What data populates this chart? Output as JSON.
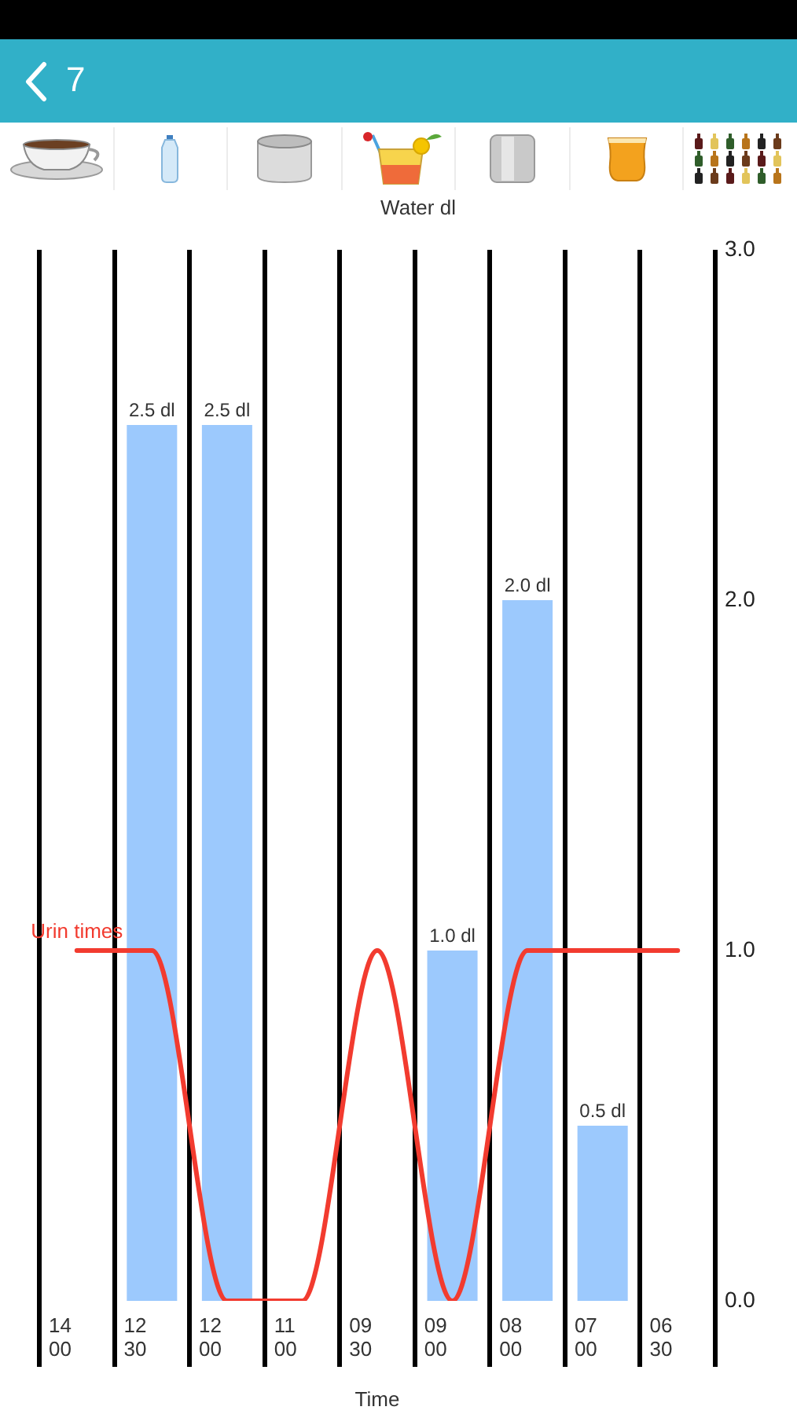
{
  "chart_data": {
    "type": "bar",
    "title": "Water dl",
    "xlabel": "Time",
    "annotations": [
      "7"
    ],
    "categories": [
      "14\n00",
      "12\n30",
      "12\n00",
      "11\n00",
      "09\n30",
      "09\n00",
      "08\n00",
      "07\n00",
      "06\n30"
    ],
    "series": [
      {
        "color": "#9cc9fd",
        "values": [
          null,
          2.5,
          2.5,
          null,
          null,
          1.0,
          2.0,
          0.5,
          null
        ],
        "value_labels": [
          null,
          "2.5 dl",
          "2.5 dl",
          null,
          null,
          "1.0 dl",
          "2.0 dl",
          "0.5 dl",
          null
        ]
      },
      {
        "type": "line",
        "name": "Urin times",
        "color": "#f23b2f",
        "values": [
          1,
          1,
          0,
          0,
          1,
          0,
          1,
          1,
          1
        ]
      }
    ],
    "ylim": [
      0,
      3
    ],
    "yticks": [
      {
        "value": 0,
        "label": "0.0"
      },
      {
        "value": 1,
        "label": "1.0"
      },
      {
        "value": 2,
        "label": "2.0"
      },
      {
        "value": 3,
        "label": "3.0"
      }
    ],
    "grid": "x",
    "legend": false,
    "marker": "none"
  }
}
